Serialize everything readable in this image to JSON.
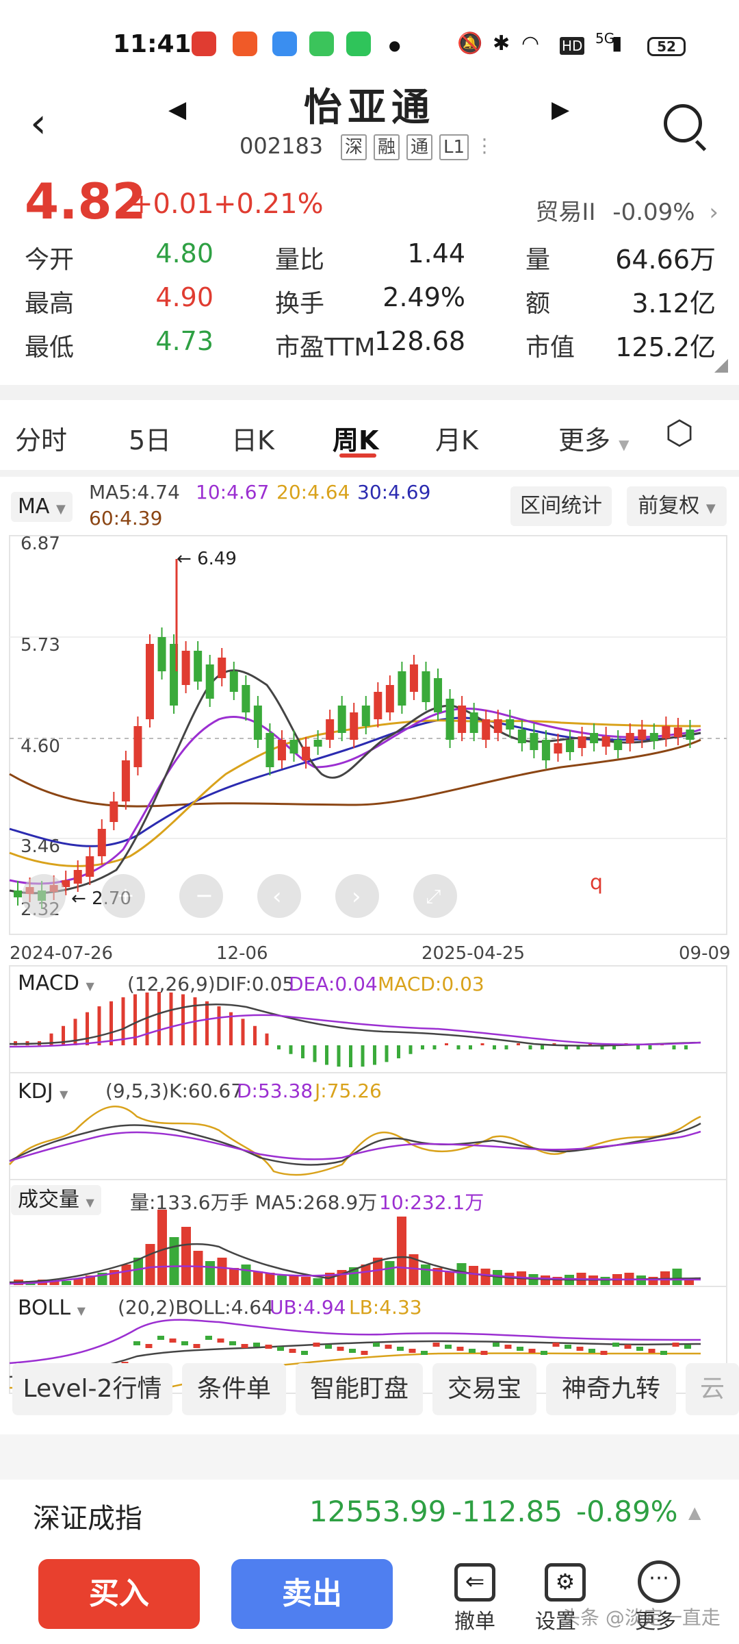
{
  "status_bar": {
    "time": "11:41",
    "battery": "52",
    "network": "5G",
    "hd": "HD"
  },
  "header": {
    "stock_name": "怡亚通",
    "stock_code": "002183",
    "tags": [
      "深",
      "融",
      "通",
      "L1"
    ]
  },
  "quote": {
    "price": "4.82",
    "change": "+0.01",
    "change_pct": "+0.21%",
    "sector": "贸易II",
    "sector_pct": "-0.09%",
    "rows": [
      [
        {
          "label": "今开",
          "value": "4.80"
        },
        {
          "label": "量比",
          "value": "1.44"
        },
        {
          "label": "量",
          "value": "64.66万"
        }
      ],
      [
        {
          "label": "最高",
          "value": "4.90"
        },
        {
          "label": "换手",
          "value": "2.49%"
        },
        {
          "label": "额",
          "value": "3.12亿"
        }
      ],
      [
        {
          "label": "最低",
          "value": "4.73"
        },
        {
          "label": "市盈TTM",
          "value": "128.68"
        },
        {
          "label": "市值",
          "value": "125.2亿"
        }
      ]
    ]
  },
  "tabs": [
    "分时",
    "5日",
    "日K",
    "周K",
    "月K",
    "更多"
  ],
  "active_tab": "周K",
  "ma_legend": {
    "selector": "MA",
    "ma5": "MA5:4.74",
    "ma10": "10:4.67",
    "ma20": "20:4.64",
    "ma30": "30:4.69",
    "ma60": "60:4.39",
    "range_stats": "区间统计",
    "adjust": "前复权"
  },
  "colors": {
    "up": "#e03c31",
    "down": "#3aaa3a",
    "ma5": "#555555",
    "ma10": "#9b2fd1",
    "ma20": "#d9a21b",
    "ma30": "#2b2bb0",
    "ma60": "#8b4513"
  },
  "chart_data": {
    "type": "candlestick",
    "y_ticks": [
      "6.87",
      "5.73",
      "4.60",
      "3.46",
      "2.32"
    ],
    "x_ticks": [
      "2024-07-26",
      "12-06",
      "2025-04-25",
      "09-09"
    ],
    "high_marker": "6.49",
    "low_marker": "2.70",
    "ylim": [
      2.32,
      6.87
    ]
  },
  "macd": {
    "selector": "MACD",
    "params": "(12,26,9)DIF:0.05",
    "dea": "DEA:0.04",
    "macd": "MACD:0.03"
  },
  "kdj": {
    "selector": "KDJ",
    "params": "(9,5,3)K:60.67",
    "d": "D:53.38",
    "j": "J:75.26"
  },
  "volume": {
    "selector": "成交量",
    "params": "量:133.6万手 MA5:268.9万",
    "ma10": "10:232.1万"
  },
  "boll": {
    "selector": "BOLL",
    "params": "(20,2)BOLL:4.64",
    "ub": "UB:4.94",
    "lb": "LB:4.33"
  },
  "toolbar": [
    "Level-2行情",
    "条件单",
    "智能盯盘",
    "交易宝",
    "神奇九转",
    "云"
  ],
  "index": {
    "name": "深证成指",
    "value": "12553.99",
    "change": "-112.85",
    "pct": "-0.89%"
  },
  "bottom": {
    "buy": "买入",
    "sell": "卖出",
    "cancel": "撤单",
    "settings": "设置",
    "more": "更多",
    "watermark": "头条 @淡定一直走"
  }
}
